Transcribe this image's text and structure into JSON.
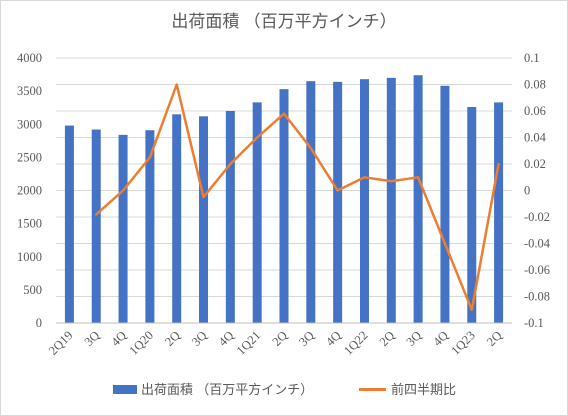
{
  "chart_data": {
    "type": "bar+line",
    "title": "出荷面積 （百万平方インチ）",
    "categories": [
      "2Q19",
      "3Q",
      "4Q",
      "1Q20",
      "2Q",
      "3Q",
      "4Q",
      "1Q21",
      "2Q",
      "3Q",
      "4Q",
      "1Q22",
      "2Q",
      "3Q",
      "4Q",
      "1Q23",
      "2Q"
    ],
    "series": [
      {
        "name": "出荷面積 （百万平方インチ）",
        "type": "bar",
        "axis": "left",
        "color": "#4472c4",
        "values": [
          2980,
          2920,
          2840,
          2910,
          3150,
          3120,
          3200,
          3330,
          3530,
          3650,
          3640,
          3680,
          3700,
          3740,
          3580,
          3260,
          3330
        ]
      },
      {
        "name": "前四半期比",
        "type": "line",
        "axis": "right",
        "color": "#ed7d31",
        "values": [
          null,
          -0.018,
          0.0,
          0.025,
          0.08,
          -0.005,
          0.02,
          0.04,
          0.058,
          0.032,
          0.0,
          0.01,
          0.007,
          0.01,
          -0.04,
          -0.09,
          0.02
        ]
      }
    ],
    "y_left": {
      "min": 0,
      "max": 4000,
      "ticks": [
        "0",
        "500",
        "1000",
        "1500",
        "2000",
        "2500",
        "3000",
        "3500",
        "4000"
      ]
    },
    "y_right": {
      "min": -0.1,
      "max": 0.1,
      "ticks": [
        "-0.1",
        "-0.08",
        "-0.06",
        "-0.04",
        "-0.02",
        "0",
        "0.02",
        "0.04",
        "0.06",
        "0.08",
        "0.1"
      ]
    },
    "grid": true,
    "legend_position": "bottom"
  }
}
